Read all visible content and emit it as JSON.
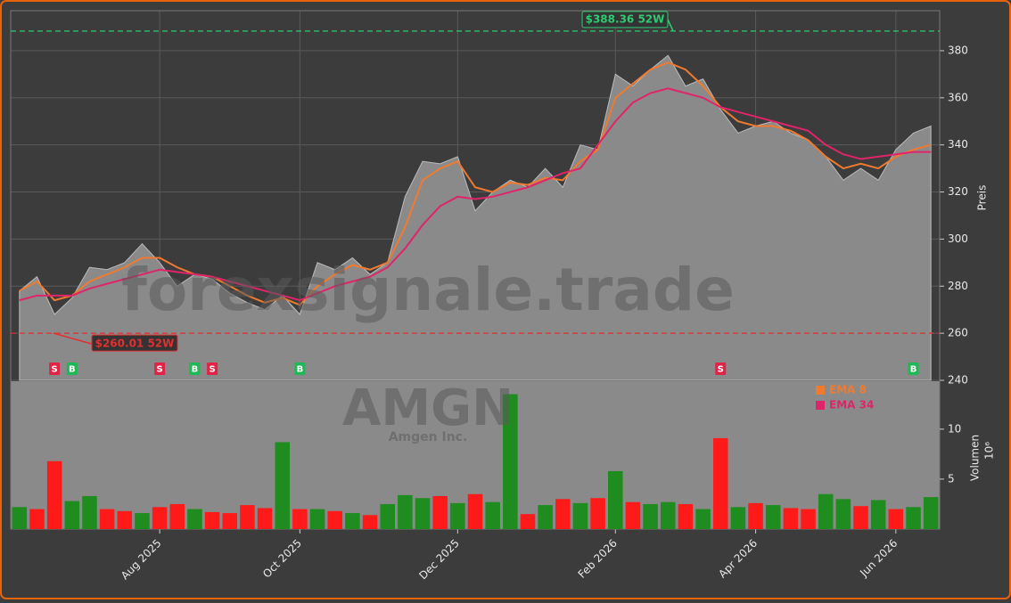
{
  "chart_data": {
    "type": "area",
    "categories": [
      null,
      null,
      null,
      null,
      null,
      null,
      null,
      null,
      "Aug 2025",
      null,
      null,
      null,
      null,
      null,
      null,
      null,
      "Oct 2025",
      null,
      null,
      null,
      null,
      null,
      null,
      null,
      null,
      "Dec 2025",
      null,
      null,
      null,
      null,
      null,
      null,
      null,
      null,
      "Feb 2026",
      null,
      null,
      null,
      null,
      null,
      null,
      null,
      "Apr 2026",
      null,
      null,
      null,
      null,
      null,
      null,
      null,
      "Jun 2026",
      null,
      null
    ],
    "values": [
      278,
      284,
      268,
      275,
      288,
      287,
      290,
      298,
      290,
      280,
      285,
      283,
      277,
      273,
      270,
      276,
      268,
      290,
      287,
      292,
      285,
      290,
      318,
      333,
      332,
      335,
      312,
      320,
      325,
      322,
      330,
      322,
      340,
      338,
      370,
      365,
      372,
      378,
      365,
      368,
      355,
      345,
      348,
      350,
      345,
      342,
      335,
      325,
      330,
      325,
      338,
      345,
      348
    ],
    "color": "#8a8a8a",
    "series": [
      {
        "name": "EMA 8",
        "color": "#f07a30",
        "values": [
          278,
          282,
          274,
          276,
          282,
          285,
          288,
          292,
          292,
          288,
          285,
          284,
          280,
          276,
          273,
          275,
          272,
          280,
          285,
          289,
          287,
          290,
          305,
          325,
          330,
          333,
          322,
          320,
          324,
          323,
          326,
          325,
          333,
          338,
          360,
          366,
          372,
          375,
          372,
          365,
          356,
          350,
          348,
          348,
          346,
          342,
          335,
          330,
          332,
          330,
          335,
          338,
          340
        ]
      },
      {
        "name": "EMA 34",
        "color": "#e0246a",
        "values": [
          274,
          276,
          276,
          276,
          279,
          281,
          283,
          285,
          287,
          286,
          285,
          284,
          282,
          280,
          278,
          276,
          274,
          277,
          280,
          282,
          284,
          288,
          296,
          306,
          314,
          318,
          317,
          318,
          320,
          322,
          325,
          328,
          330,
          340,
          350,
          358,
          362,
          364,
          362,
          360,
          356,
          354,
          352,
          350,
          348,
          346,
          340,
          336,
          334,
          335,
          336,
          337,
          337
        ]
      }
    ],
    "ylim": [
      240,
      397
    ],
    "yticks": [
      240,
      260,
      280,
      300,
      320,
      340,
      360,
      380
    ],
    "ylabel": "Preis",
    "grid": true,
    "high_line": {
      "value": 388.36,
      "label": "$388.36 52W",
      "color": "#2ecc71"
    },
    "low_line": {
      "value": 260.01,
      "label": "$260.01 52W",
      "color": "#e03030"
    },
    "signals": [
      {
        "category": 2,
        "label": "S"
      },
      {
        "category": 3,
        "label": "B"
      },
      {
        "category": 8,
        "label": "S"
      },
      {
        "category": 10,
        "label": "B"
      },
      {
        "category": 11,
        "label": "S"
      },
      {
        "category": 16,
        "label": "B"
      },
      {
        "category": 40,
        "label": "S"
      },
      {
        "category": 51,
        "label": "B"
      }
    ],
    "volume": {
      "values": [
        2.2,
        2.0,
        6.8,
        2.8,
        3.3,
        2.0,
        1.8,
        1.6,
        2.2,
        2.5,
        2.0,
        1.7,
        1.6,
        2.4,
        2.1,
        8.7,
        2.0,
        2.0,
        1.8,
        1.6,
        1.4,
        2.5,
        3.4,
        3.1,
        3.3,
        2.6,
        3.5,
        2.7,
        13.5,
        1.5,
        2.4,
        3.0,
        2.6,
        3.1,
        5.8,
        2.7,
        2.5,
        2.7,
        2.5,
        2.0,
        9.1,
        2.2,
        2.6,
        2.4,
        2.1,
        2.0,
        3.5,
        3.0,
        2.3,
        2.9,
        2.0,
        2.2,
        3.2
      ],
      "colors": [
        "#1e8c1e",
        "#ff1a1a",
        "#ff1a1a",
        "#1e8c1e",
        "#1e8c1e",
        "#ff1a1a",
        "#ff1a1a",
        "#1e8c1e",
        "#ff1a1a",
        "#ff1a1a",
        "#1e8c1e",
        "#ff1a1a",
        "#ff1a1a",
        "#ff1a1a",
        "#ff1a1a",
        "#1e8c1e",
        "#ff1a1a",
        "#1e8c1e",
        "#ff1a1a",
        "#1e8c1e",
        "#ff1a1a",
        "#1e8c1e",
        "#1e8c1e",
        "#1e8c1e",
        "#ff1a1a",
        "#1e8c1e",
        "#ff1a1a",
        "#1e8c1e",
        "#1e8c1e",
        "#ff1a1a",
        "#1e8c1e",
        "#ff1a1a",
        "#1e8c1e",
        "#ff1a1a",
        "#1e8c1e",
        "#ff1a1a",
        "#1e8c1e",
        "#1e8c1e",
        "#ff1a1a",
        "#1e8c1e",
        "#ff1a1a",
        "#1e8c1e",
        "#ff1a1a",
        "#1e8c1e",
        "#ff1a1a",
        "#ff1a1a",
        "#1e8c1e",
        "#1e8c1e",
        "#ff1a1a",
        "#1e8c1e",
        "#ff1a1a",
        "#1e8c1e",
        "#1e8c1e"
      ],
      "ylim": [
        0,
        14.8
      ],
      "yticks": [
        5,
        10
      ],
      "ylabel": "Volumen",
      "unit": "10⁶"
    },
    "watermark": "forexsignale.trade",
    "symbol": "AMGN",
    "company": "Amgen Inc."
  }
}
